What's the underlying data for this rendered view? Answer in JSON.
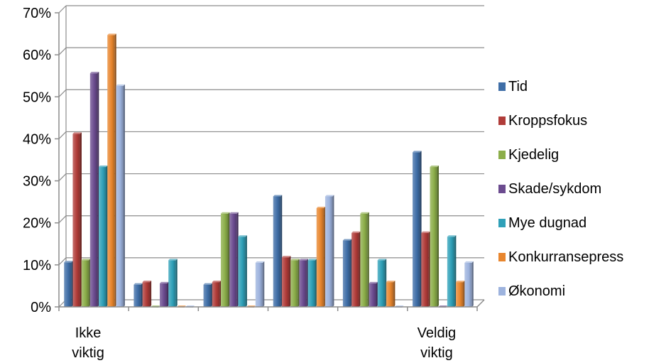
{
  "chart_data": {
    "type": "bar",
    "categories": [
      "Ikke\nviktig",
      "",
      "",
      "",
      "",
      "Veldig\nviktig"
    ],
    "series": [
      {
        "name": "Tid",
        "color": "#3f6ea7",
        "values": [
          10.6,
          5.3,
          5.3,
          26.3,
          15.8,
          36.8
        ]
      },
      {
        "name": "Kroppsfokus",
        "color": "#b03c39",
        "values": [
          41.2,
          5.9,
          5.9,
          11.8,
          17.6,
          17.6
        ]
      },
      {
        "name": "Kjedelig",
        "color": "#8cae4a",
        "values": [
          11.1,
          0,
          22.2,
          11.1,
          22.2,
          33.3
        ]
      },
      {
        "name": "Skade/sykdom",
        "color": "#6b4b8f",
        "values": [
          55.6,
          5.6,
          22.2,
          11.1,
          5.6,
          0
        ]
      },
      {
        "name": "Mye dugnad",
        "color": "#2fa0b8",
        "values": [
          33.3,
          11.1,
          16.7,
          11.1,
          11.1,
          16.7
        ]
      },
      {
        "name": "Konkurransepress",
        "color": "#e8862e",
        "values": [
          64.7,
          0,
          0,
          23.5,
          5.9,
          5.9
        ]
      },
      {
        "name": "Økonomi",
        "color": "#9db3de",
        "values": [
          52.6,
          0,
          10.5,
          26.3,
          0,
          10.5
        ]
      }
    ],
    "ylim": [
      0,
      70
    ],
    "yticks": [
      "0%",
      "10%",
      "20%",
      "30%",
      "40%",
      "50%",
      "60%",
      "70%"
    ],
    "grid": true,
    "legend": "right"
  }
}
